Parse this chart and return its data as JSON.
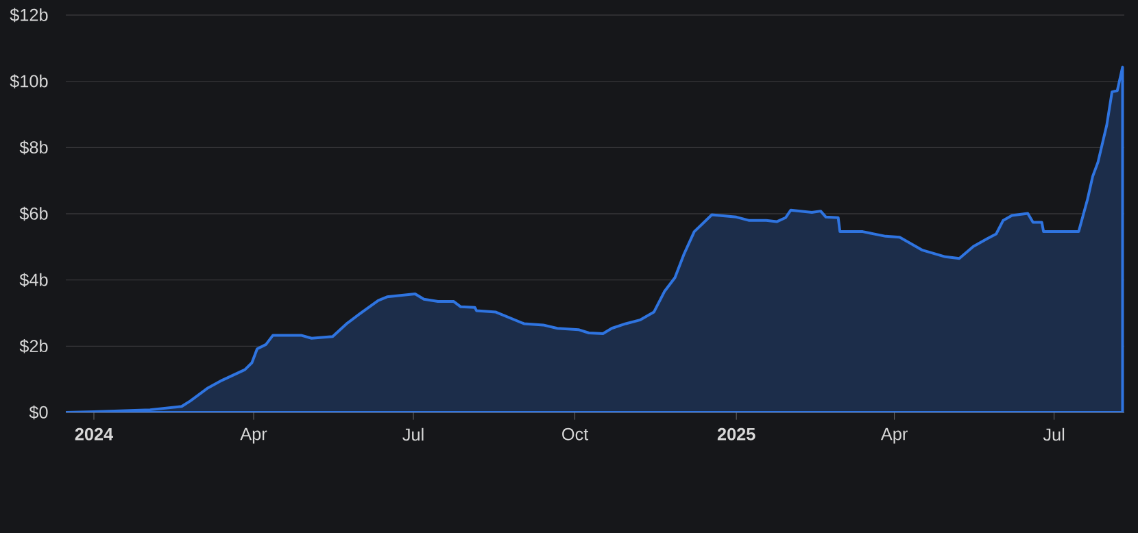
{
  "chart_data": {
    "type": "area",
    "color": "#1c2d4a",
    "x": [
      "2023-12-16",
      "2024-01-01",
      "2024-02-02",
      "2024-02-20",
      "2024-02-25",
      "2024-03-06",
      "2024-03-14",
      "2024-03-27",
      "2024-03-31",
      "2024-04-03",
      "2024-04-08",
      "2024-04-12",
      "2024-04-28",
      "2024-05-04",
      "2024-05-16",
      "2024-05-24",
      "2024-05-31",
      "2024-06-11",
      "2024-06-16",
      "2024-07-02",
      "2024-07-07",
      "2024-07-15",
      "2024-07-24",
      "2024-07-28",
      "2024-08-05",
      "2024-08-06",
      "2024-08-17",
      "2024-09-02",
      "2024-09-13",
      "2024-09-21",
      "2024-10-03",
      "2024-10-09",
      "2024-10-17",
      "2024-10-22",
      "2024-10-30",
      "2024-11-07",
      "2024-11-15",
      "2024-11-21",
      "2024-11-27",
      "2024-12-02",
      "2024-12-08",
      "2024-12-18",
      "2025-01-01",
      "2025-01-08",
      "2025-01-18",
      "2025-01-24",
      "2025-01-29",
      "2025-02-01",
      "2025-02-13",
      "2025-02-18",
      "2025-02-21",
      "2025-02-28",
      "2025-03-01",
      "2025-03-14",
      "2025-03-27",
      "2025-04-04",
      "2025-04-17",
      "2025-04-30",
      "2025-05-08",
      "2025-05-16",
      "2025-05-24",
      "2025-05-29",
      "2025-06-02",
      "2025-06-07",
      "2025-06-16",
      "2025-06-19",
      "2025-06-24",
      "2025-06-25",
      "2025-07-15",
      "2025-07-20",
      "2025-07-23",
      "2025-07-26",
      "2025-07-31",
      "2025-08-03",
      "2025-08-06",
      "2025-08-09"
    ],
    "values": [
      0,
      0.02,
      0.08,
      0.18,
      0.35,
      0.74,
      0.97,
      1.29,
      1.5,
      1.92,
      2.05,
      2.33,
      2.33,
      2.24,
      2.29,
      2.68,
      2.96,
      3.38,
      3.49,
      3.58,
      3.42,
      3.35,
      3.35,
      3.19,
      3.17,
      3.07,
      3.03,
      2.68,
      2.64,
      2.54,
      2.5,
      2.4,
      2.38,
      2.54,
      2.68,
      2.79,
      3.03,
      3.65,
      4.07,
      4.76,
      5.46,
      5.97,
      5.9,
      5.8,
      5.8,
      5.76,
      5.88,
      6.11,
      6.04,
      6.08,
      5.9,
      5.88,
      5.46,
      5.46,
      5.32,
      5.29,
      4.9,
      4.7,
      4.65,
      5.01,
      5.25,
      5.39,
      5.8,
      5.95,
      6.01,
      5.74,
      5.74,
      5.46,
      5.46,
      6.43,
      7.13,
      7.56,
      8.68,
      9.68,
      9.72,
      10.43
    ],
    "xlim": [
      "2023-12-16",
      "2025-08-10"
    ],
    "xticks": [
      {
        "value": "2024-01-01",
        "label": "2024"
      },
      {
        "value": "2024-04-01",
        "label": "Apr"
      },
      {
        "value": "2024-07-01",
        "label": "Jul"
      },
      {
        "value": "2024-10-01",
        "label": "Oct"
      },
      {
        "value": "2025-01-01",
        "label": "2025"
      },
      {
        "value": "2025-04-01",
        "label": "Apr"
      },
      {
        "value": "2025-07-01",
        "label": "Jul"
      }
    ],
    "ylim": [
      0,
      12
    ],
    "yticks": [
      {
        "value": 0,
        "label": "$0"
      },
      {
        "value": 2,
        "label": "$2b"
      },
      {
        "value": 4,
        "label": "$4b"
      },
      {
        "value": 6,
        "label": "$6b"
      },
      {
        "value": 8,
        "label": "$8b"
      },
      {
        "value": 10,
        "label": "$10b"
      },
      {
        "value": 12,
        "label": "$12b"
      }
    ],
    "grid": "y"
  }
}
